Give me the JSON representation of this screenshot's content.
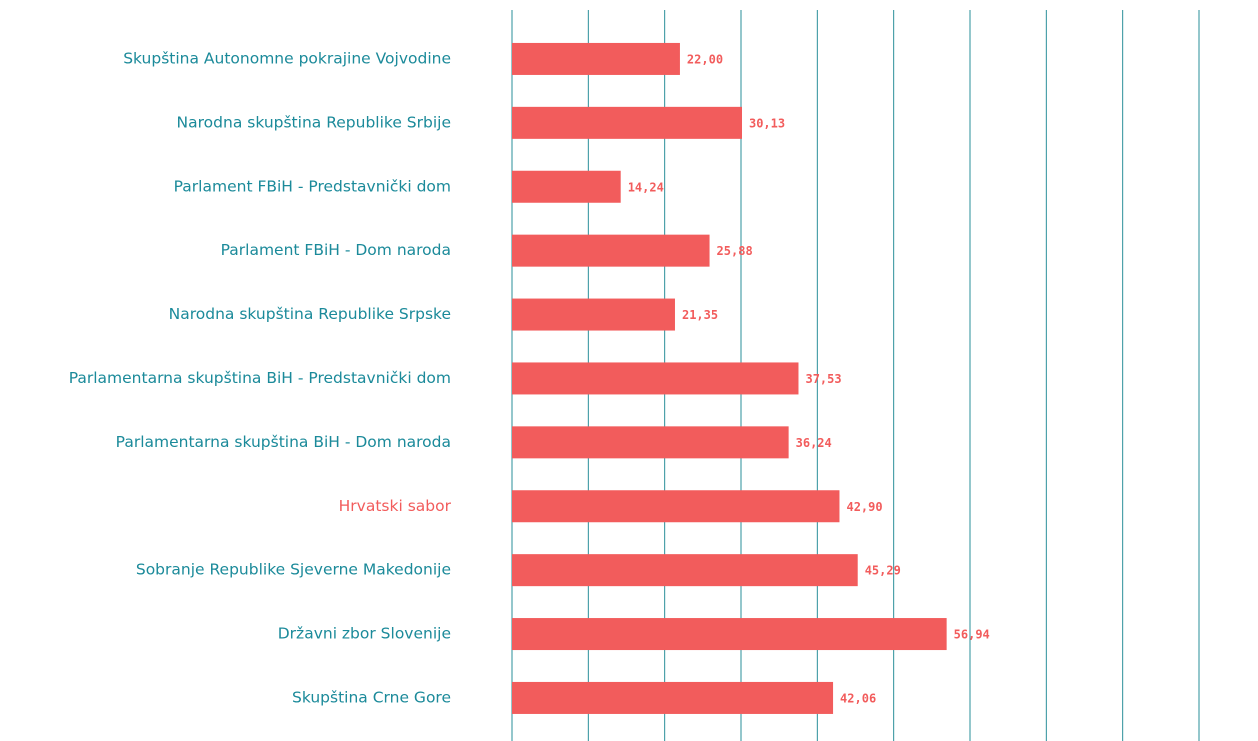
{
  "chart_data": {
    "type": "bar",
    "orientation": "horizontal",
    "categories": [
      "Skupština Autonomne pokrajine Vojvodine",
      "Narodna skupština Republike Srbije",
      "Parlament FBiH - Predstavnički dom",
      "Parlament FBiH - Dom naroda",
      "Narodna skupština Republike Srpske",
      "Parlamentarna skupština BiH - Predstavnički dom",
      "Parlamentarna skupština BiH - Dom naroda",
      "Hrvatski sabor",
      "Sobranje Republike Sjeverne Makedonije",
      "Državni zbor Slovenije",
      "Skupština Crne Gore"
    ],
    "values": [
      22.0,
      30.13,
      14.24,
      25.88,
      21.35,
      37.53,
      36.24,
      42.9,
      45.29,
      56.94,
      42.06
    ],
    "value_labels": [
      "22,00",
      "30,13",
      "14,24",
      "25,88",
      "21,35",
      "37,53",
      "36,24",
      "42,90",
      "45,29",
      "56,94",
      "42,06"
    ],
    "color": "#f25c5c",
    "label_colors": [
      "#1b8a9a",
      "#1b8a9a",
      "#1b8a9a",
      "#1b8a9a",
      "#1b8a9a",
      "#1b8a9a",
      "#1b8a9a",
      "#f25c5c",
      "#1b8a9a",
      "#1b8a9a",
      "#1b8a9a"
    ],
    "grid_color": "#2a8f9a",
    "xlim": [
      0,
      90
    ],
    "xticks": [
      0,
      10,
      20,
      30,
      40,
      50,
      60,
      70,
      80,
      90
    ],
    "grid": true
  }
}
